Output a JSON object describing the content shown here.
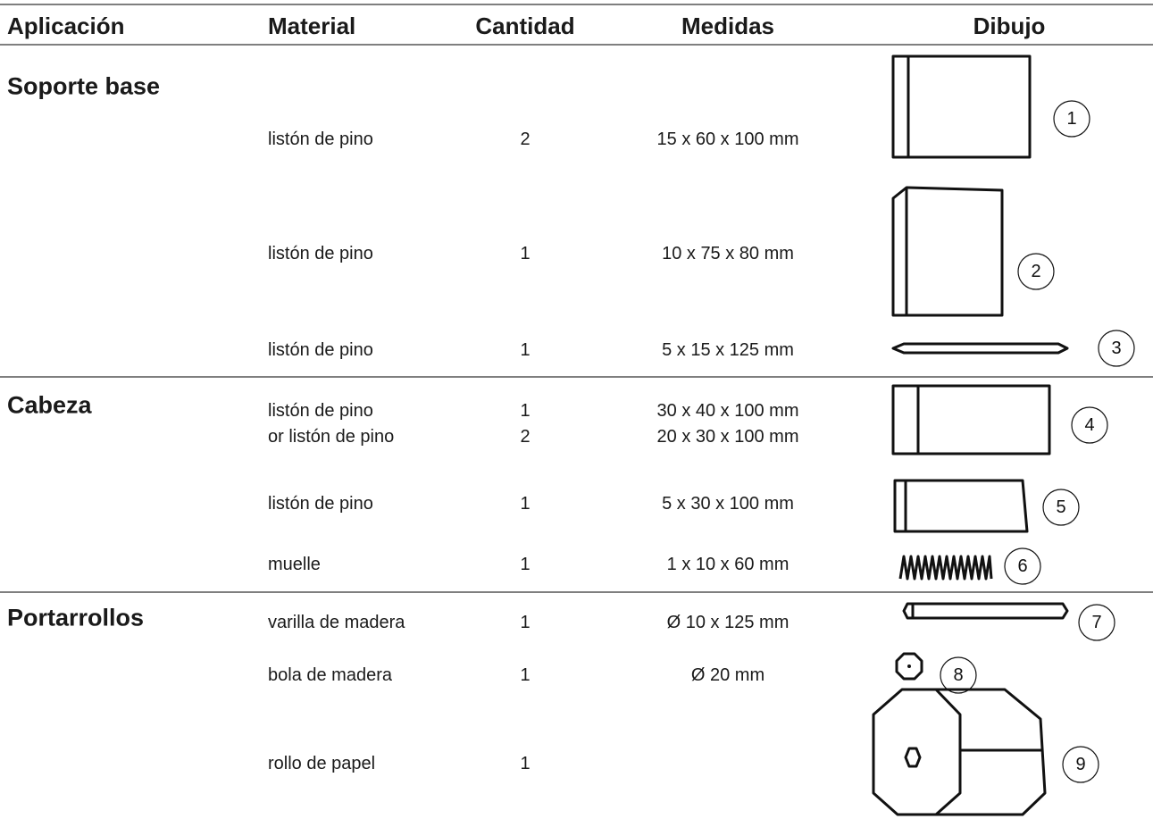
{
  "header": {
    "columns": [
      "Aplicación",
      "Material",
      "Cantidad",
      "Medidas",
      "Dibujo"
    ]
  },
  "sections": [
    {
      "name": "Soporte base",
      "rows": [
        {
          "material": [
            "listón de pino"
          ],
          "quantity": [
            2
          ],
          "measures": [
            "15 x 60 x 100 mm"
          ],
          "drawing": 1
        },
        {
          "material": [
            "listón de pino"
          ],
          "quantity": [
            1
          ],
          "measures": [
            "10 x 75 x 80 mm"
          ],
          "drawing": 2
        },
        {
          "material": [
            "listón de pino"
          ],
          "quantity": [
            1
          ],
          "measures": [
            "5 x 15 x 125 mm"
          ],
          "drawing": 3
        }
      ]
    },
    {
      "name": "Cabeza",
      "rows": [
        {
          "material": [
            "listón de pino",
            "or listón de pino"
          ],
          "quantity": [
            1,
            2
          ],
          "measures": [
            "30 x 40 x 100 mm",
            "20 x 30 x 100 mm"
          ],
          "drawing": 4
        },
        {
          "material": [
            "listón de pino"
          ],
          "quantity": [
            1
          ],
          "measures": [
            "5 x 30 x 100 mm"
          ],
          "drawing": 5
        },
        {
          "material": [
            "muelle"
          ],
          "quantity": [
            1
          ],
          "measures": [
            "1 x 10 x 60 mm"
          ],
          "drawing": 6
        }
      ]
    },
    {
      "name": "Portarrollos",
      "rows": [
        {
          "material": [
            "varilla de madera"
          ],
          "quantity": [
            1
          ],
          "measures": [
            "Ø 10 x 125 mm"
          ],
          "drawing": 7
        },
        {
          "material": [
            "bola de madera"
          ],
          "quantity": [
            1
          ],
          "measures": [
            "Ø 20 mm"
          ],
          "drawing": 8
        },
        {
          "material": [
            "rollo de papel"
          ],
          "quantity": [
            1
          ],
          "drawing": 9
        }
      ]
    }
  ]
}
